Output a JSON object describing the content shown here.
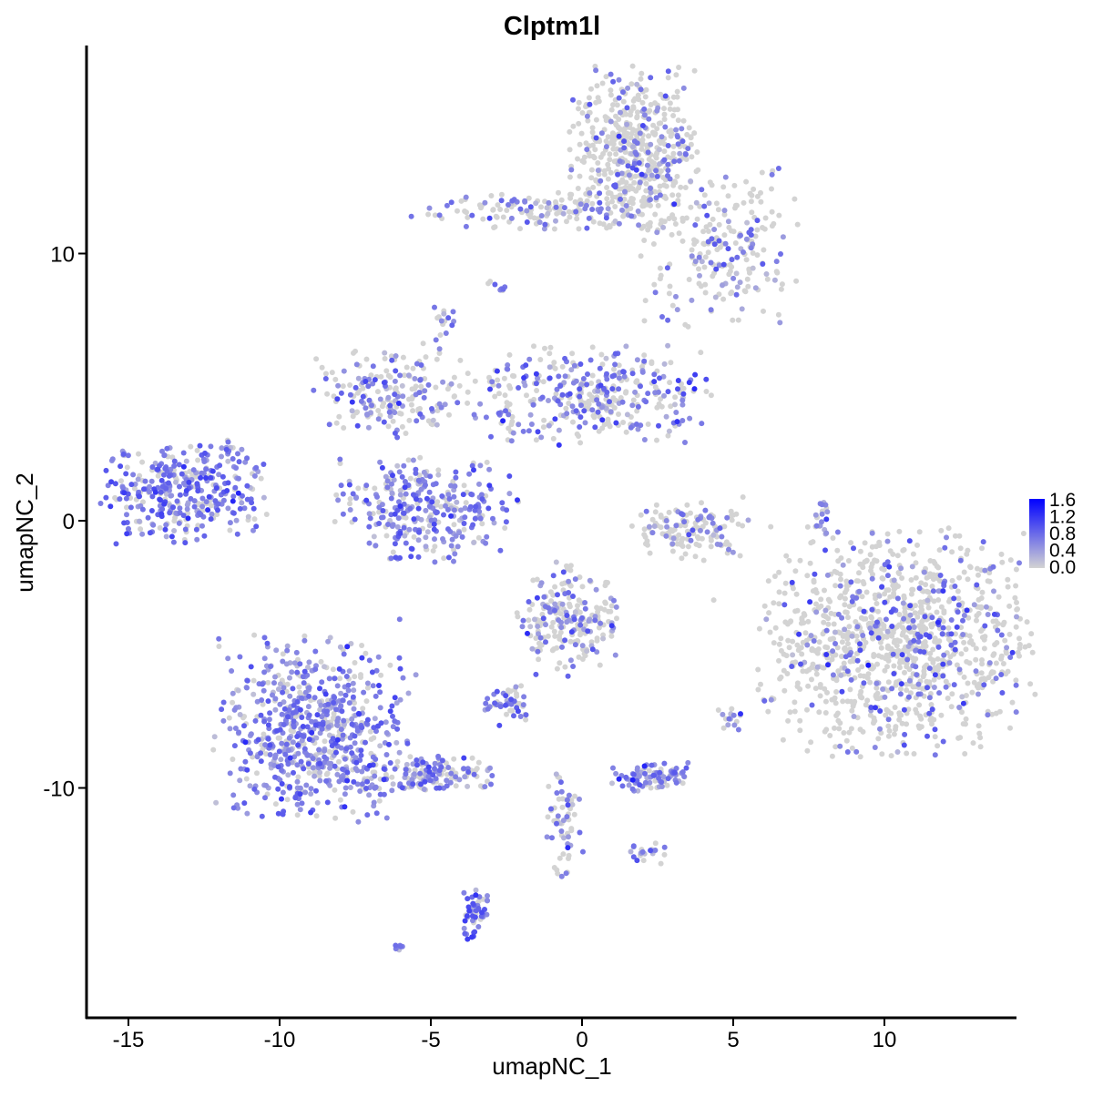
{
  "chart_data": {
    "type": "scatter",
    "title": "Clptm1l",
    "xlabel": "umapNC_1",
    "ylabel": "umapNC_2",
    "xlim": [
      -16.5,
      14.3
    ],
    "ylim": [
      -18.8,
      17.6
    ],
    "xticks": [
      -15,
      -10,
      -5,
      0,
      5,
      10
    ],
    "xtick_labels": [
      "-15",
      "-10",
      "-5",
      "0",
      "5",
      "10"
    ],
    "yticks": [
      -10,
      0,
      10
    ],
    "ytick_labels": [
      "-10",
      "0",
      "10"
    ],
    "grid": false,
    "legend": {
      "placement": "right",
      "type": "colorbar",
      "min": 0.0,
      "max": 1.6,
      "ticks": [
        "1.6",
        "1.2",
        "0.8",
        "0.4",
        "0.0"
      ],
      "low_color": "#d3d3d3",
      "high_color": "#0000ff"
    },
    "clusters": [
      {
        "center": [
          1.7,
          14.0
        ],
        "sd": [
          1.0,
          1.4
        ],
        "n": 500,
        "expressed_fraction": 0.25,
        "mean_expression": 0.6
      },
      {
        "center": [
          -0.9,
          11.6
        ],
        "sd": [
          2.2,
          0.35
        ],
        "n": 160,
        "expressed_fraction": 0.3,
        "mean_expression": 0.6
      },
      {
        "center": [
          4.5,
          10.3
        ],
        "sd": [
          1.2,
          1.4
        ],
        "n": 220,
        "expressed_fraction": 0.35,
        "mean_expression": 0.6
      },
      {
        "center": [
          -13.2,
          1.1
        ],
        "sd": [
          1.3,
          0.9
        ],
        "n": 360,
        "expressed_fraction": 0.75,
        "mean_expression": 0.7
      },
      {
        "center": [
          -6.3,
          4.8
        ],
        "sd": [
          1.2,
          0.8
        ],
        "n": 200,
        "expressed_fraction": 0.5,
        "mean_expression": 0.6
      },
      {
        "center": [
          -5.1,
          0.4
        ],
        "sd": [
          1.4,
          0.9
        ],
        "n": 320,
        "expressed_fraction": 0.7,
        "mean_expression": 0.6
      },
      {
        "center": [
          0.3,
          4.8
        ],
        "sd": [
          1.9,
          0.9
        ],
        "n": 360,
        "expressed_fraction": 0.5,
        "mean_expression": 0.65
      },
      {
        "center": [
          3.6,
          -0.4
        ],
        "sd": [
          0.9,
          0.5
        ],
        "n": 140,
        "expressed_fraction": 0.3,
        "mean_expression": 0.6
      },
      {
        "center": [
          10.4,
          -4.5
        ],
        "sd": [
          2.1,
          2.0
        ],
        "n": 1100,
        "expressed_fraction": 0.2,
        "mean_expression": 0.7
      },
      {
        "center": [
          -8.9,
          -7.8
        ],
        "sd": [
          1.5,
          1.6
        ],
        "n": 700,
        "expressed_fraction": 0.75,
        "mean_expression": 0.6
      },
      {
        "center": [
          -5.2,
          -9.5
        ],
        "sd": [
          1.1,
          0.35
        ],
        "n": 150,
        "expressed_fraction": 0.65,
        "mean_expression": 0.6
      },
      {
        "center": [
          -0.4,
          -3.7
        ],
        "sd": [
          0.8,
          1.0
        ],
        "n": 220,
        "expressed_fraction": 0.35,
        "mean_expression": 0.6
      },
      {
        "center": [
          -2.5,
          -6.8
        ],
        "sd": [
          0.4,
          0.3
        ],
        "n": 50,
        "expressed_fraction": 0.6,
        "mean_expression": 0.6
      },
      {
        "center": [
          2.3,
          -9.6
        ],
        "sd": [
          0.6,
          0.25
        ],
        "n": 90,
        "expressed_fraction": 0.8,
        "mean_expression": 0.6
      },
      {
        "center": [
          -0.6,
          -11.2
        ],
        "sd": [
          0.3,
          1.0
        ],
        "n": 60,
        "expressed_fraction": 0.5,
        "mean_expression": 0.6
      },
      {
        "center": [
          -3.5,
          -14.6
        ],
        "sd": [
          0.2,
          0.6
        ],
        "n": 50,
        "expressed_fraction": 0.8,
        "mean_expression": 0.7
      },
      {
        "center": [
          8.0,
          0.0
        ],
        "sd": [
          0.15,
          0.6
        ],
        "n": 20,
        "expressed_fraction": 0.6,
        "mean_expression": 0.6
      },
      {
        "center": [
          4.9,
          -7.3
        ],
        "sd": [
          0.2,
          0.3
        ],
        "n": 15,
        "expressed_fraction": 0.7,
        "mean_expression": 0.6
      },
      {
        "center": [
          -2.8,
          8.8
        ],
        "sd": [
          0.15,
          0.15
        ],
        "n": 8,
        "expressed_fraction": 0.6,
        "mean_expression": 0.6
      },
      {
        "center": [
          -4.5,
          7.4
        ],
        "sd": [
          0.2,
          0.3
        ],
        "n": 15,
        "expressed_fraction": 0.6,
        "mean_expression": 0.6
      },
      {
        "center": [
          2.1,
          -12.4
        ],
        "sd": [
          0.3,
          0.2
        ],
        "n": 20,
        "expressed_fraction": 0.6,
        "mean_expression": 0.6
      },
      {
        "center": [
          -6.0,
          -16.0
        ],
        "sd": [
          0.1,
          0.1
        ],
        "n": 6,
        "expressed_fraction": 0.8,
        "mean_expression": 0.6
      },
      {
        "center": [
          -11.6,
          2.7
        ],
        "sd": [
          0.2,
          0.2
        ],
        "n": 10,
        "expressed_fraction": 0.8,
        "mean_expression": 0.6
      }
    ]
  }
}
